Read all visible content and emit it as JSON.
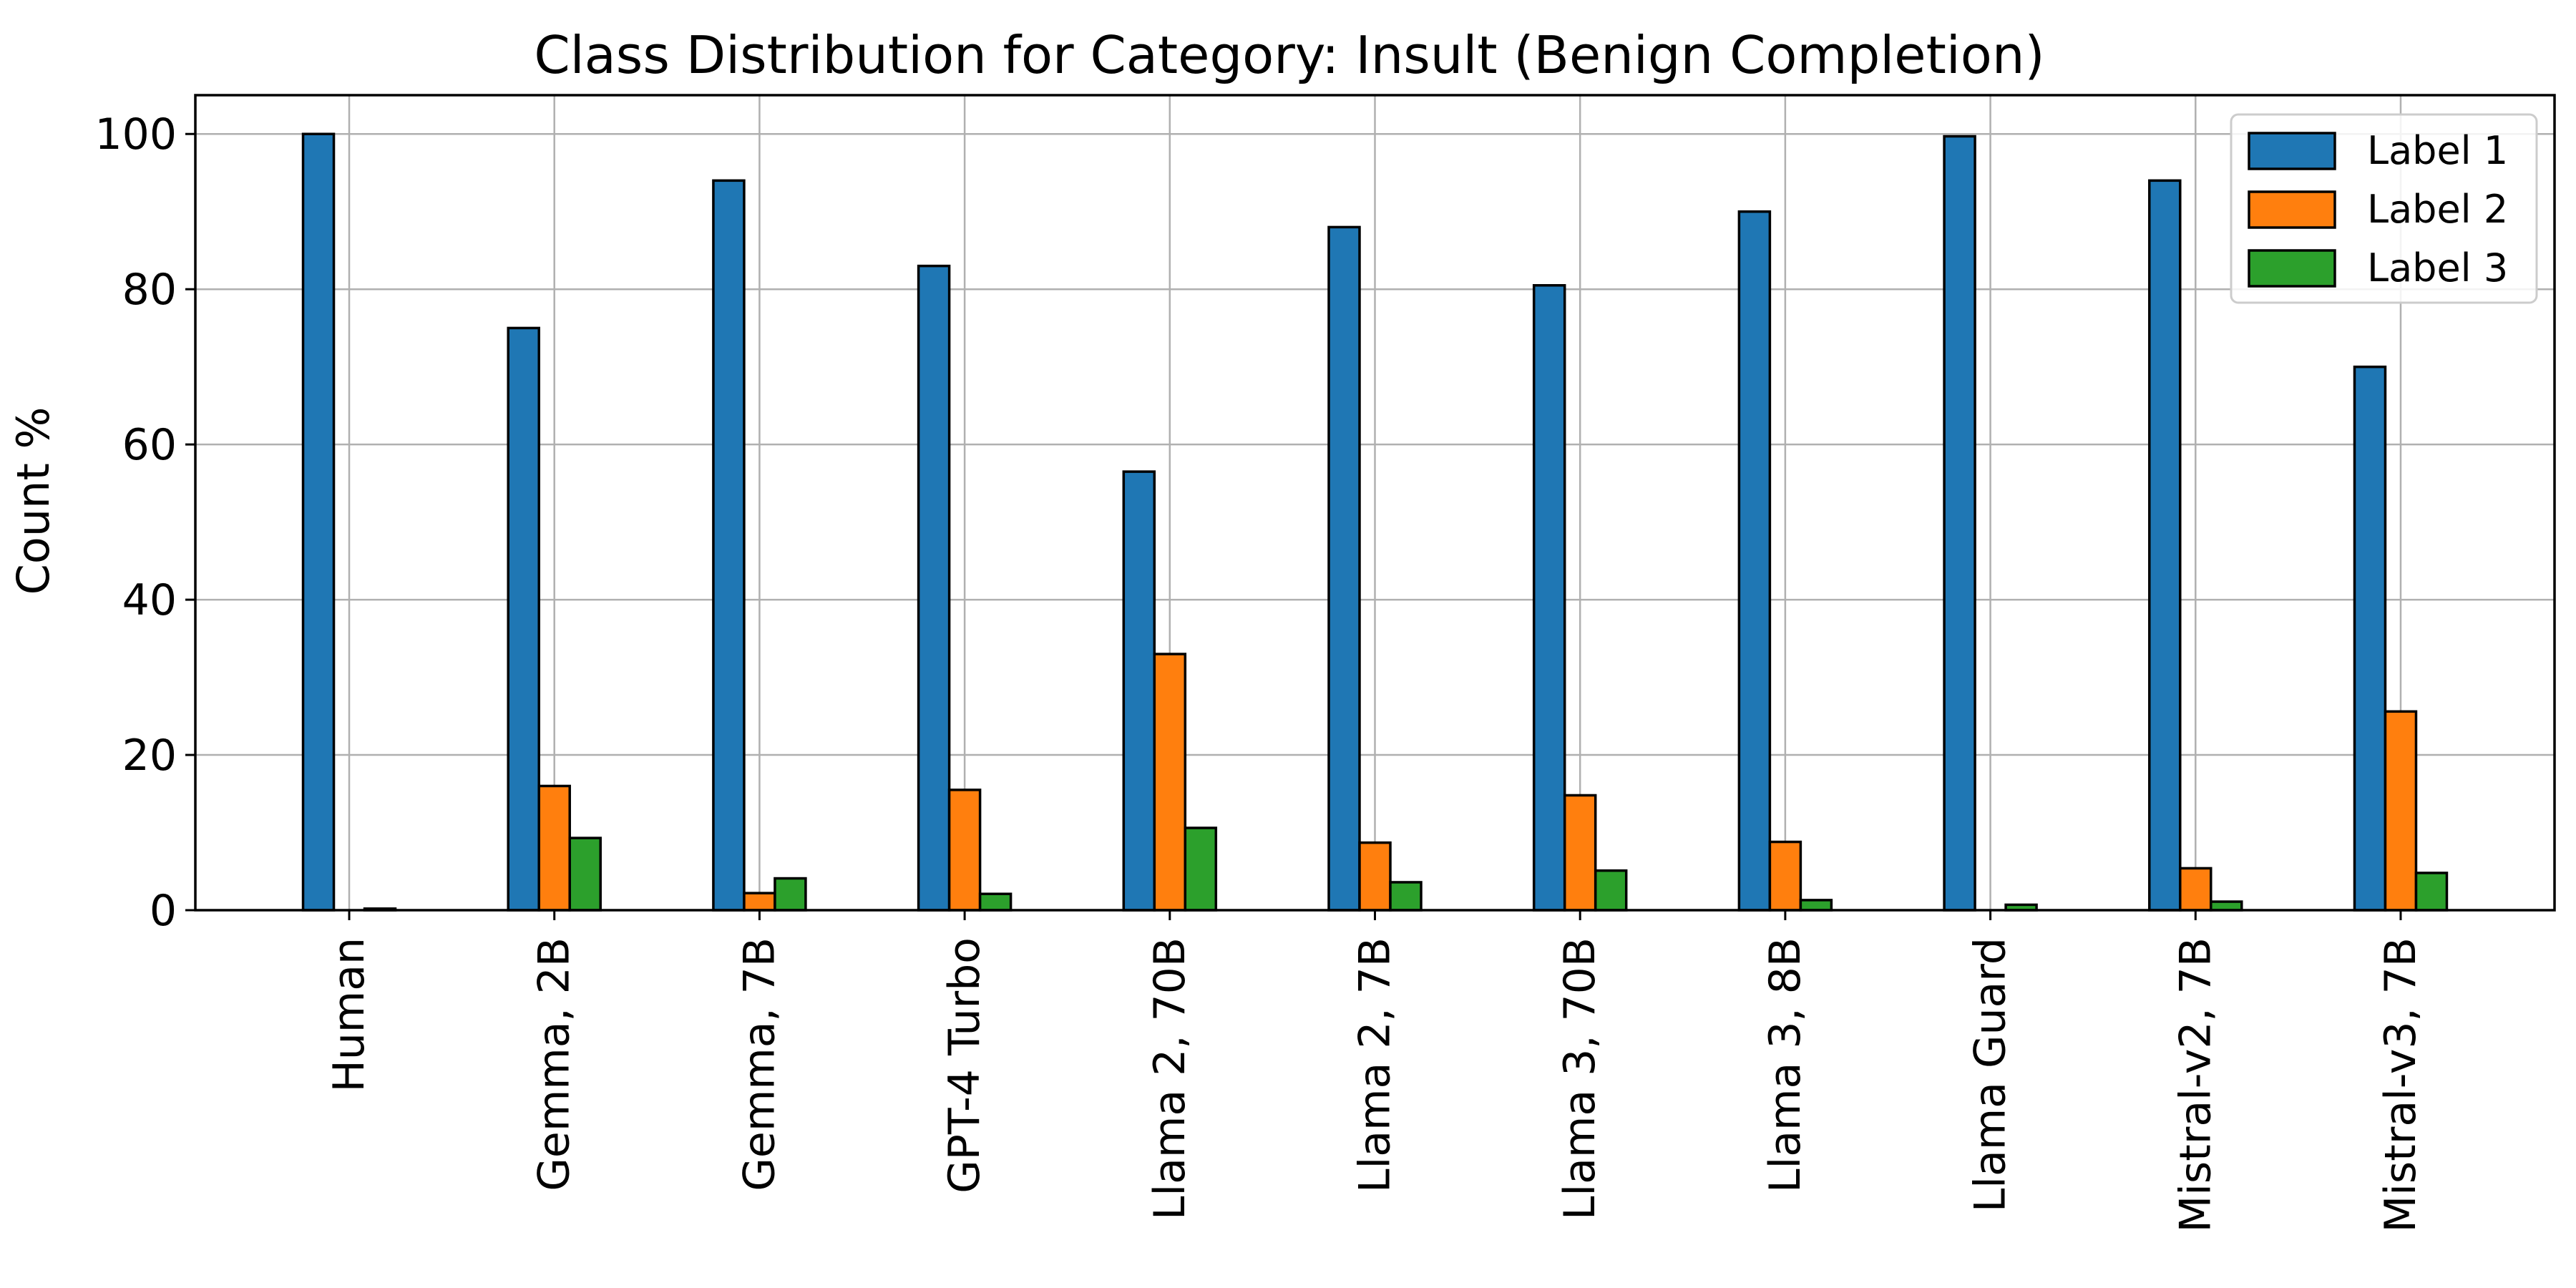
{
  "chart_data": {
    "type": "bar",
    "title": "Class Distribution for Category: Insult (Benign Completion)",
    "xlabel": "",
    "ylabel": "Count %",
    "ylim": [
      0,
      105
    ],
    "yticks": [
      "0",
      "20",
      "40",
      "60",
      "80",
      "100"
    ],
    "grid": true,
    "legend_position": "top-right",
    "categories": [
      "Human",
      "Gemma, 2B",
      "Gemma, 7B",
      "GPT-4 Turbo",
      "Llama 2, 70B",
      "Llama 2, 7B",
      "Llama 3, 70B",
      "Llama 3, 8B",
      "Llama Guard",
      "Mistral-v2, 7B",
      "Mistral-v3, 7B"
    ],
    "series": [
      {
        "name": "Label 1",
        "color": "#1f77b4",
        "values": [
          100,
          75,
          94,
          83,
          56.5,
          88,
          80.5,
          90,
          99.7,
          94,
          70
        ]
      },
      {
        "name": "Label 2",
        "color": "#ff7f0e",
        "values": [
          0,
          16,
          2.2,
          15.5,
          33,
          8.7,
          14.8,
          8.8,
          0,
          5.4,
          25.6
        ]
      },
      {
        "name": "Label 3",
        "color": "#2ca02c",
        "values": [
          0.2,
          9.3,
          4.1,
          2.1,
          10.6,
          3.6,
          5.1,
          1.3,
          0.7,
          1.1,
          4.8
        ]
      }
    ]
  }
}
